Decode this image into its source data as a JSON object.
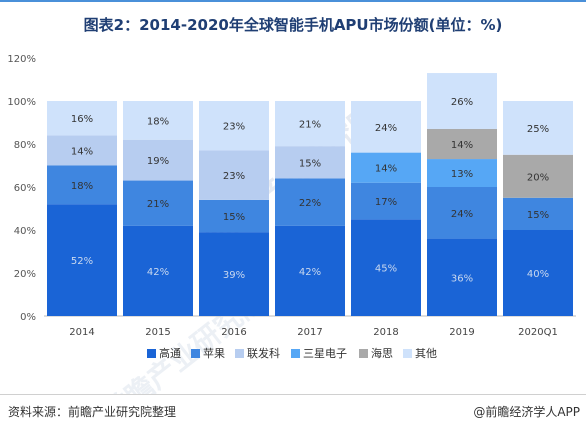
{
  "title": "图表2：2014-2020年全球智能手机APU市场份额(单位：%)",
  "source": "资料来源：前瞻产业研究院整理",
  "brand": "@前瞻经济学人APP",
  "watermark": "前瞻产业研究院",
  "chart_data": {
    "type": "bar",
    "stacked": true,
    "categories": [
      "2014",
      "2015",
      "2016",
      "2017",
      "2018",
      "2019",
      "2020Q1"
    ],
    "ylim": [
      0,
      120
    ],
    "yticks": [
      0,
      20,
      40,
      60,
      80,
      100,
      120
    ],
    "ytick_labels": [
      "0%",
      "20%",
      "40%",
      "60%",
      "80%",
      "100%",
      "120%"
    ],
    "grid": false,
    "legend_position": "bottom",
    "series": [
      {
        "name": "高通",
        "color": "#1a64d6",
        "values": [
          52,
          42,
          39,
          42,
          45,
          36,
          40
        ],
        "labels": [
          "52%",
          "42%",
          "39%",
          "42%",
          "45%",
          "36%",
          "40%"
        ]
      },
      {
        "name": "苹果",
        "color": "#3f86e0",
        "values": [
          18,
          21,
          15,
          22,
          17,
          24,
          15
        ],
        "labels": [
          "18%",
          "21%",
          "15%",
          "22%",
          "17%",
          "24%",
          "15%"
        ]
      },
      {
        "name": "联发科",
        "color": "#b7cdf0",
        "values": [
          14,
          19,
          23,
          15,
          0,
          0,
          0
        ],
        "labels": [
          "14%",
          "19%",
          "23%",
          "15%",
          "",
          "",
          ""
        ]
      },
      {
        "name": "三星电子",
        "color": "#56a7f5",
        "values": [
          0,
          0,
          0,
          0,
          14,
          13,
          0
        ],
        "labels": [
          "",
          "",
          "",
          "",
          "14%",
          "13%",
          ""
        ]
      },
      {
        "name": "海思",
        "color": "#a9a9a9",
        "values": [
          0,
          0,
          0,
          0,
          0,
          14,
          20
        ],
        "labels": [
          "",
          "",
          "",
          "",
          "",
          "14%",
          "20%"
        ]
      },
      {
        "name": "其他",
        "color": "#cfe2fb",
        "values": [
          16,
          18,
          23,
          21,
          24,
          26,
          25
        ],
        "labels": [
          "16%",
          "18%",
          "23%",
          "21%",
          "24%",
          "26%",
          "25%"
        ]
      }
    ]
  }
}
